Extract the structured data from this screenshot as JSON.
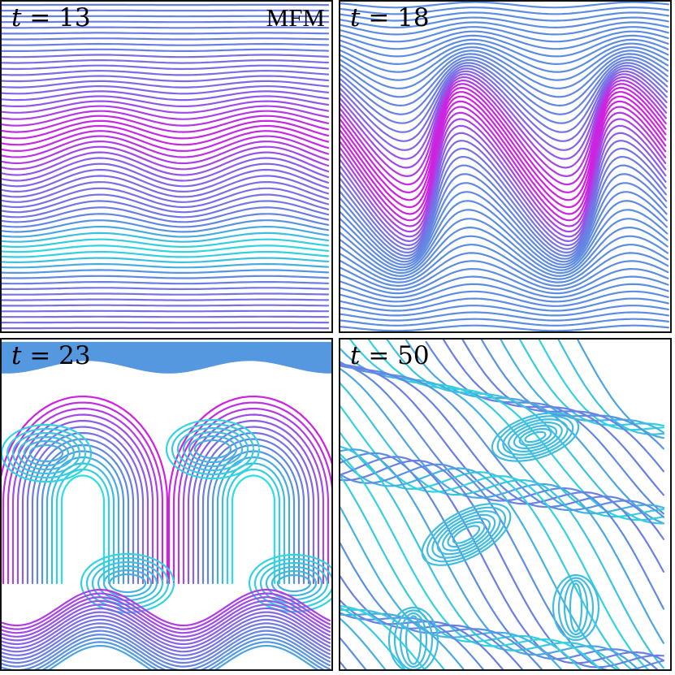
{
  "method_label": "MFM",
  "panels": [
    {
      "time_var": "t",
      "eq": "=",
      "value": "13"
    },
    {
      "time_var": "t",
      "eq": "=",
      "value": "18"
    },
    {
      "time_var": "t",
      "eq": "=",
      "value": "23"
    },
    {
      "time_var": "t",
      "eq": "=",
      "value": "50"
    }
  ],
  "colors": {
    "magenta": "#d020e0",
    "purple": "#8a5ee8",
    "blue": "#5a90e0",
    "cyan": "#2ae0e0",
    "frame": "#111111"
  }
}
